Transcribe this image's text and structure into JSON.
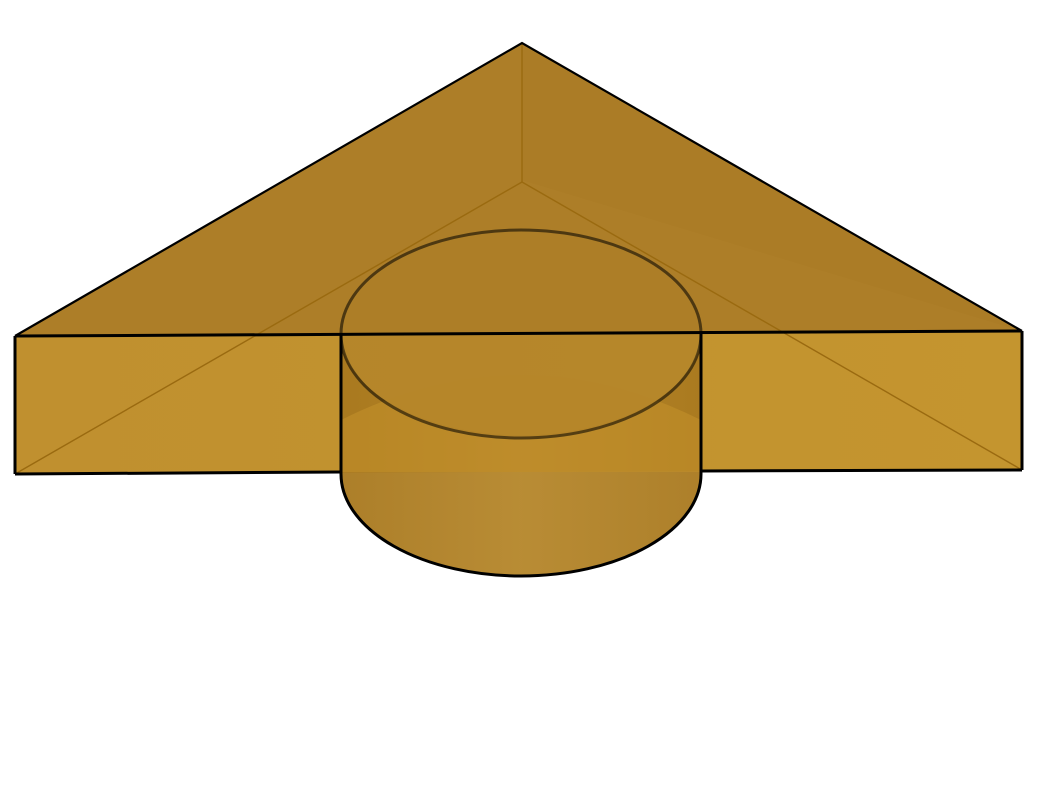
{
  "figure": {
    "shapes": [
      "triangular-prism",
      "cylinder"
    ],
    "colors": {
      "background": "#ffffff",
      "solid_fill": "#b07f22",
      "top_face": "#ad7e28",
      "side_face": "#c2922e",
      "edge": "#000000",
      "hidden_edge": "#9a6a10"
    }
  }
}
